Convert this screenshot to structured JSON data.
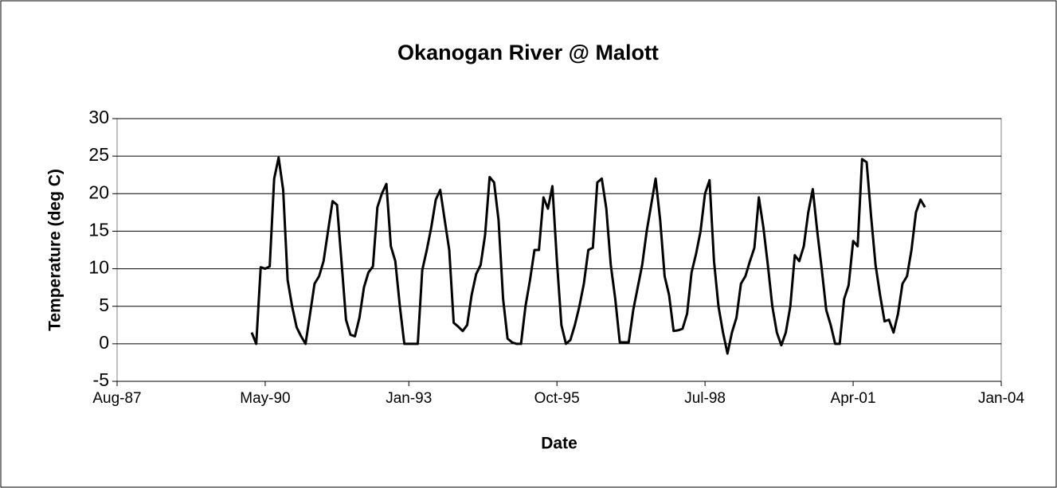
{
  "chart_data": {
    "type": "line",
    "title": "Okanogan River @ Malott",
    "x_label": "Date",
    "y_label": "Temperature (deg C)",
    "x": [
      "1990-02",
      "1990-03",
      "1990-04",
      "1990-05",
      "1990-06",
      "1990-07",
      "1990-08",
      "1990-09",
      "1990-10",
      "1990-11",
      "1990-12",
      "1991-01",
      "1991-02",
      "1991-03",
      "1991-04",
      "1991-05",
      "1991-06",
      "1991-07",
      "1991-08",
      "1991-09",
      "1991-10",
      "1991-11",
      "1991-12",
      "1992-01",
      "1992-02",
      "1992-03",
      "1992-04",
      "1992-05",
      "1992-06",
      "1992-07",
      "1992-08",
      "1992-09",
      "1992-10",
      "1992-11",
      "1992-12",
      "1993-01",
      "1993-02",
      "1993-03",
      "1993-04",
      "1993-05",
      "1993-06",
      "1993-07",
      "1993-08",
      "1993-09",
      "1993-10",
      "1993-11",
      "1993-12",
      "1994-01",
      "1994-02",
      "1994-03",
      "1994-04",
      "1994-05",
      "1994-06",
      "1994-07",
      "1994-08",
      "1994-09",
      "1994-10",
      "1994-11",
      "1994-12",
      "1995-01",
      "1995-02",
      "1995-03",
      "1995-04",
      "1995-05",
      "1995-06",
      "1995-07",
      "1995-08",
      "1995-09",
      "1995-10",
      "1995-11",
      "1995-12",
      "1996-01",
      "1996-02",
      "1996-03",
      "1996-04",
      "1996-05",
      "1996-06",
      "1996-07",
      "1996-08",
      "1996-09",
      "1996-10",
      "1996-11",
      "1996-12",
      "1997-01",
      "1997-02",
      "1997-03",
      "1997-04",
      "1997-05",
      "1997-06",
      "1997-07",
      "1997-08",
      "1997-09",
      "1997-10",
      "1997-11",
      "1997-12",
      "1998-01",
      "1998-02",
      "1998-03",
      "1998-04",
      "1998-05",
      "1998-06",
      "1998-07",
      "1998-08",
      "1998-09",
      "1998-10",
      "1998-11",
      "1998-12",
      "1999-01",
      "1999-02",
      "1999-03",
      "1999-04",
      "1999-05",
      "1999-06",
      "1999-07",
      "1999-08",
      "1999-09",
      "1999-10",
      "1999-11",
      "1999-12",
      "2000-01",
      "2000-02",
      "2000-03",
      "2000-04",
      "2000-05",
      "2000-06",
      "2000-07",
      "2000-08",
      "2000-09",
      "2000-10",
      "2000-11",
      "2000-12",
      "2001-01",
      "2001-02",
      "2001-03",
      "2001-04",
      "2001-05",
      "2001-06",
      "2001-07",
      "2001-08",
      "2001-09",
      "2001-10",
      "2001-11",
      "2001-12",
      "2002-01",
      "2002-02",
      "2002-03",
      "2002-04",
      "2002-05",
      "2002-06",
      "2002-07",
      "2002-08"
    ],
    "series": [
      {
        "name": "Temperature",
        "color": "#000000",
        "values": [
          1.5,
          0,
          10.2,
          10,
          10.3,
          22,
          24.8,
          20.5,
          8.5,
          5,
          2.2,
          1,
          0,
          4,
          8,
          9,
          11,
          15,
          19,
          18.5,
          11,
          3.2,
          1.2,
          1,
          3.5,
          7.5,
          9.5,
          10.3,
          18.2,
          20,
          21.3,
          13,
          11,
          5,
          0,
          0,
          0,
          0,
          9.8,
          12.5,
          15.5,
          19.2,
          20.5,
          16.5,
          12.5,
          2.8,
          2.3,
          1.7,
          2.5,
          6.5,
          9.3,
          10.5,
          14.5,
          22.2,
          21.5,
          16.5,
          6,
          0.7,
          0.2,
          0,
          0,
          5,
          8.5,
          12.5,
          12.5,
          19.5,
          18,
          21,
          11,
          2.5,
          0,
          0.5,
          2.5,
          5,
          8,
          12.5,
          12.8,
          21.5,
          22,
          18,
          10.5,
          6,
          0.2,
          0.2,
          0.2,
          4.5,
          7.5,
          10.5,
          15,
          18.5,
          22,
          16.5,
          9,
          6.5,
          1.7,
          1.8,
          2,
          4,
          9.5,
          12,
          15,
          20,
          21.8,
          11,
          5,
          1.5,
          -1.3,
          1.5,
          3.5,
          8,
          9,
          11,
          12.8,
          19.5,
          15.5,
          10.5,
          5,
          1.5,
          -0.2,
          1.5,
          5,
          11.8,
          11,
          13,
          17.5,
          20.6,
          15,
          10,
          4.5,
          2.5,
          0,
          0,
          6,
          7.8,
          13.7,
          13,
          24.6,
          24.2,
          17,
          10.5,
          6.5,
          3,
          3.2,
          1.5,
          4,
          8,
          9,
          12.5,
          17.5,
          19.2,
          18.2
        ]
      }
    ],
    "xlim": [
      "1987-08",
      "2004-01"
    ],
    "xticks": [
      {
        "value": "1987-08",
        "label": "Aug-87"
      },
      {
        "value": "1990-05",
        "label": "May-90"
      },
      {
        "value": "1993-01",
        "label": "Jan-93"
      },
      {
        "value": "1995-10",
        "label": "Oct-95"
      },
      {
        "value": "1998-07",
        "label": "Jul-98"
      },
      {
        "value": "2001-04",
        "label": "Apr-01"
      },
      {
        "value": "2004-01",
        "label": "Jan-04"
      }
    ],
    "ylim": [
      -5,
      30
    ],
    "yticks": [
      -5,
      0,
      5,
      10,
      15,
      20,
      25,
      30
    ],
    "grid": true
  }
}
